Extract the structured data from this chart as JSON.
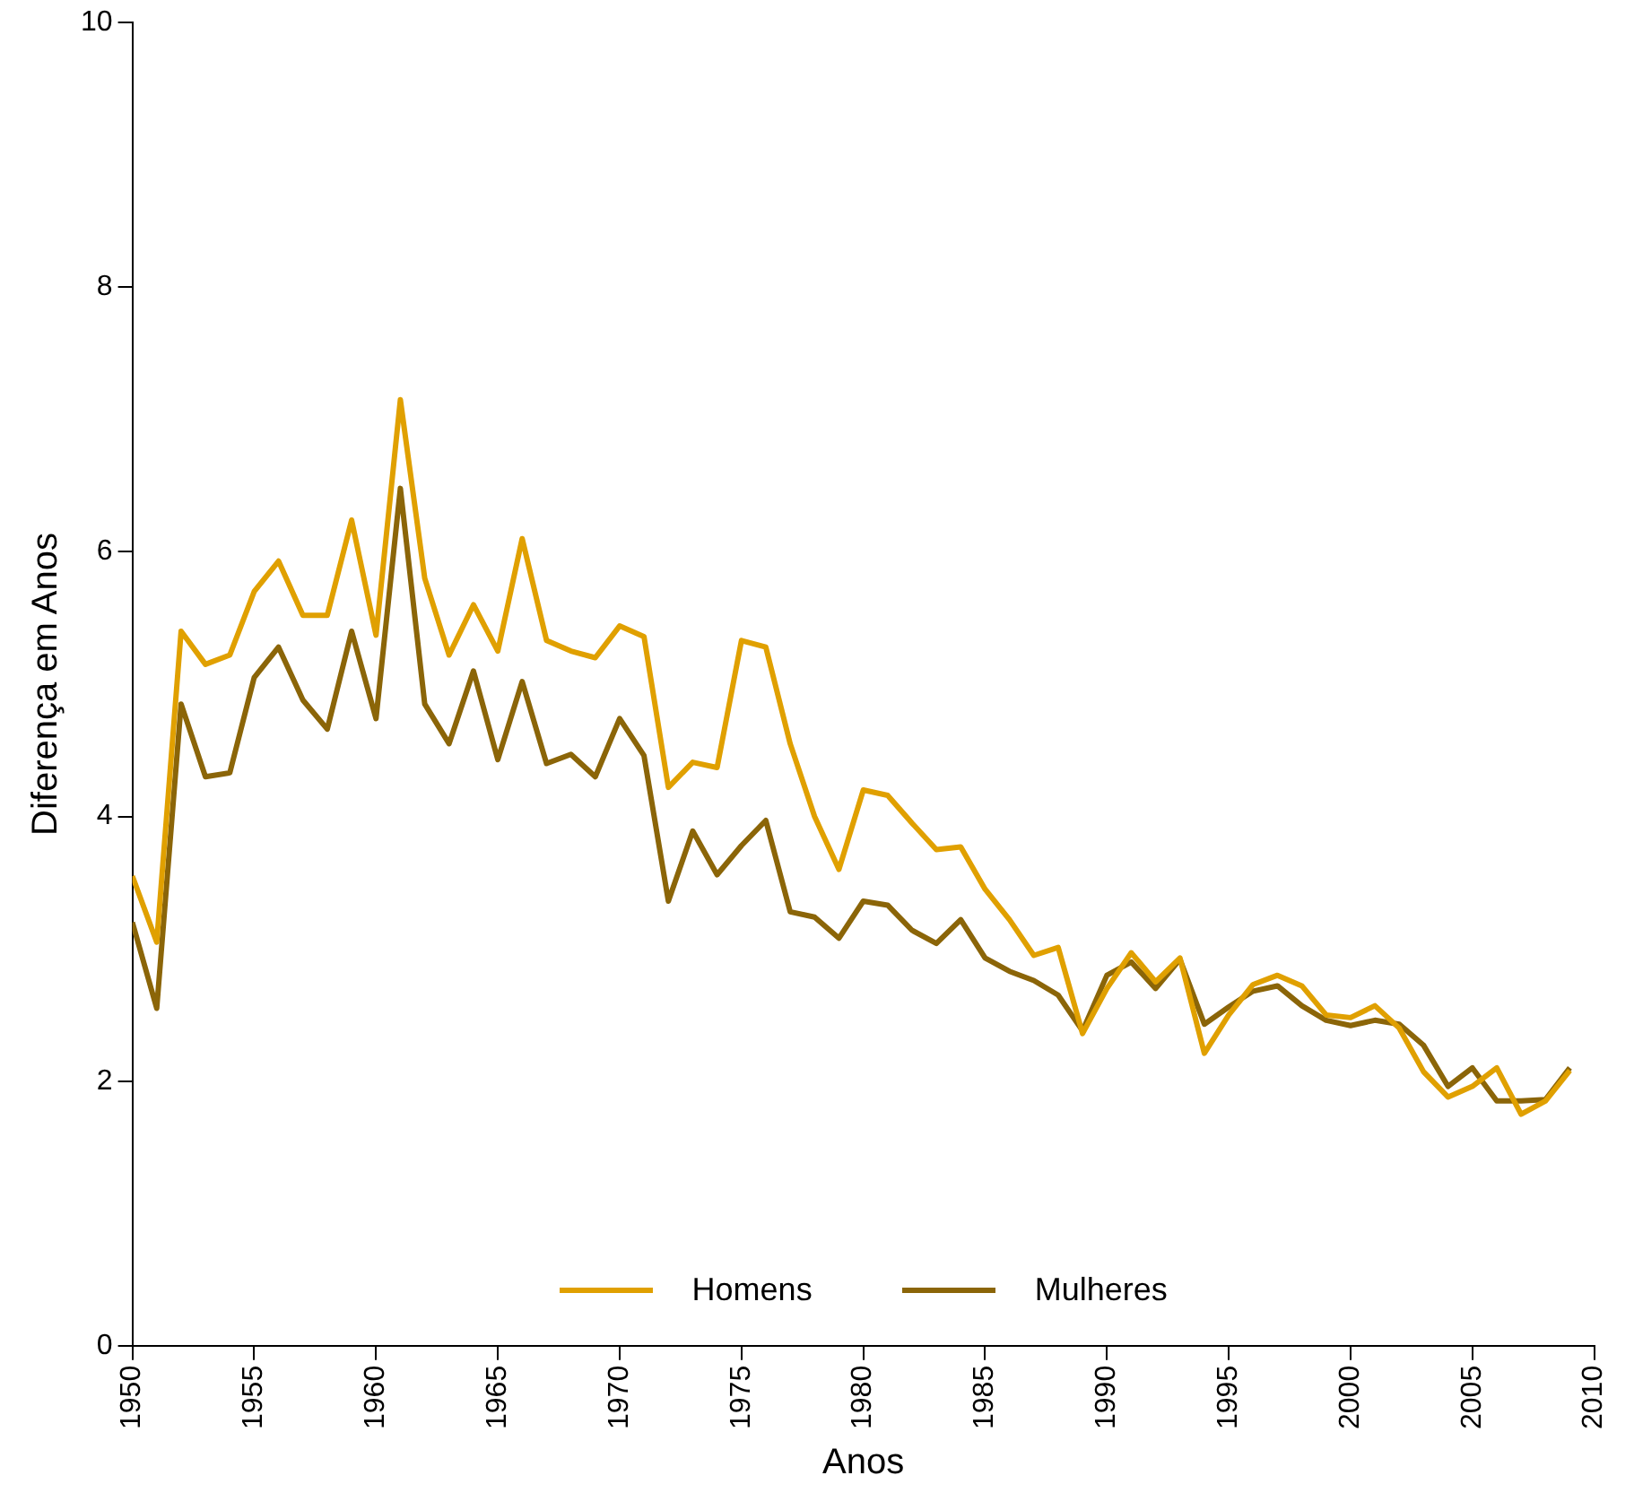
{
  "chart_data": {
    "type": "line",
    "xlabel": "Anos",
    "ylabel": "Diferença em Anos",
    "x": [
      1950,
      1951,
      1952,
      1953,
      1954,
      1955,
      1956,
      1957,
      1958,
      1959,
      1960,
      1961,
      1962,
      1963,
      1964,
      1965,
      1966,
      1967,
      1968,
      1969,
      1970,
      1971,
      1972,
      1973,
      1974,
      1975,
      1976,
      1977,
      1978,
      1979,
      1980,
      1981,
      1982,
      1983,
      1984,
      1985,
      1986,
      1987,
      1988,
      1989,
      1990,
      1991,
      1992,
      1993,
      1994,
      1995,
      1996,
      1997,
      1998,
      1999,
      2000,
      2001,
      2002,
      2003,
      2004,
      2005,
      2006,
      2007,
      2008,
      2009
    ],
    "series": [
      {
        "name": "Homens",
        "color": "#e0a000",
        "values": [
          3.55,
          3.05,
          5.4,
          5.15,
          5.22,
          5.7,
          5.93,
          5.52,
          5.52,
          6.24,
          5.37,
          7.15,
          5.8,
          5.22,
          5.6,
          5.25,
          6.1,
          5.33,
          5.25,
          5.2,
          5.44,
          5.36,
          4.22,
          4.41,
          4.37,
          5.33,
          5.28,
          4.55,
          4.0,
          3.6,
          4.2,
          4.16,
          3.95,
          3.75,
          3.77,
          3.45,
          3.22,
          2.95,
          3.01,
          2.36,
          2.7,
          2.97,
          2.75,
          2.93,
          2.21,
          2.5,
          2.73,
          2.8,
          2.72,
          2.5,
          2.48,
          2.57,
          2.4,
          2.07,
          1.88,
          1.96,
          2.1,
          1.75,
          1.85,
          2.08
        ]
      },
      {
        "name": "Mulheres",
        "color": "#8b6508",
        "values": [
          3.2,
          2.55,
          4.85,
          4.3,
          4.33,
          5.05,
          5.28,
          4.88,
          4.66,
          5.4,
          4.74,
          6.48,
          4.85,
          4.55,
          5.1,
          4.43,
          5.02,
          4.4,
          4.47,
          4.3,
          4.74,
          4.46,
          3.36,
          3.89,
          3.56,
          3.78,
          3.97,
          3.28,
          3.24,
          3.08,
          3.36,
          3.33,
          3.14,
          3.04,
          3.22,
          2.93,
          2.83,
          2.76,
          2.65,
          2.38,
          2.8,
          2.9,
          2.7,
          2.92,
          2.43,
          2.56,
          2.68,
          2.72,
          2.57,
          2.46,
          2.42,
          2.46,
          2.43,
          2.27,
          1.96,
          2.1,
          1.85,
          1.85,
          1.86,
          2.1
        ]
      }
    ],
    "xlim": [
      1950,
      2010
    ],
    "xticks": [
      1950,
      1955,
      1960,
      1965,
      1970,
      1975,
      1980,
      1985,
      1990,
      1995,
      2000,
      2005,
      2010
    ],
    "ylim": [
      0,
      10
    ],
    "yticks": [
      0,
      2,
      4,
      6,
      8,
      10
    ],
    "grid": false,
    "legend": "bottom",
    "marker": "none",
    "line_style": "solid"
  }
}
